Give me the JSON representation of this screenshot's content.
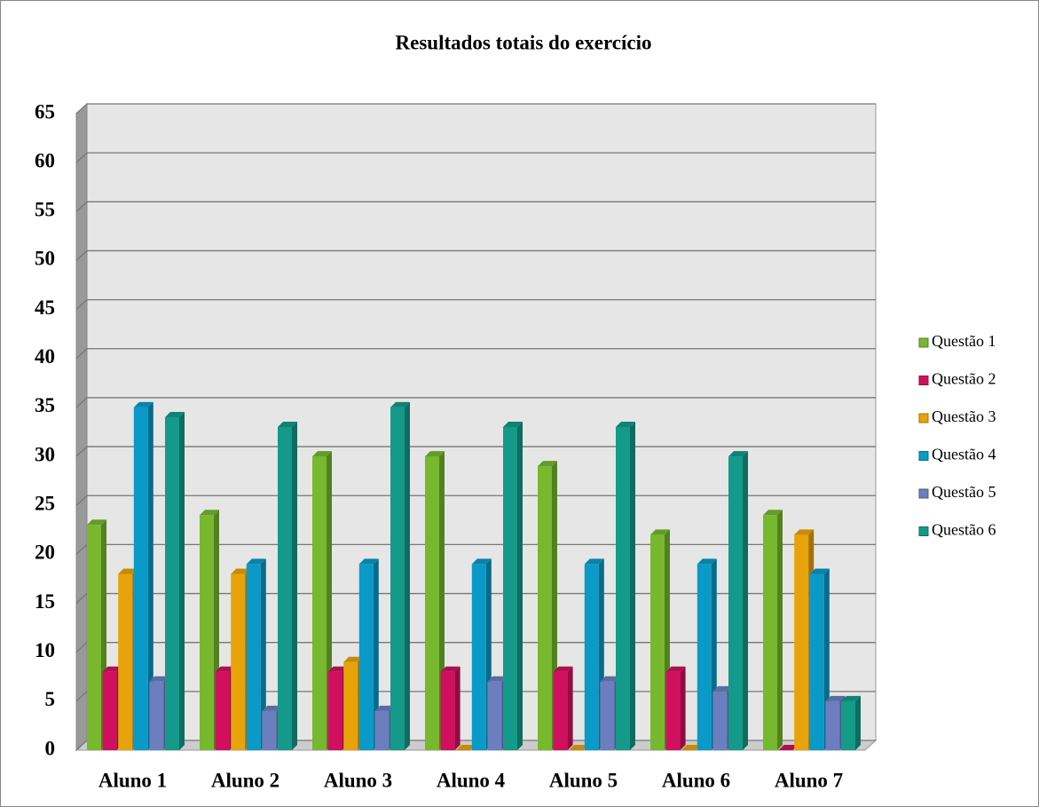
{
  "chart_data": {
    "type": "bar3d",
    "title": "Resultados totais do exercício",
    "categories": [
      "Aluno 1",
      "Aluno 2",
      "Aluno 3",
      "Aluno 4",
      "Aluno 5",
      "Aluno 6",
      "Aluno 7"
    ],
    "series": [
      {
        "name": "Questão 1",
        "color": "#77b82f",
        "values": [
          23,
          24,
          30,
          30,
          29,
          22,
          24
        ]
      },
      {
        "name": "Questão 2",
        "color": "#d0105e",
        "values": [
          8,
          8,
          8,
          8,
          8,
          8,
          0
        ]
      },
      {
        "name": "Questão 3",
        "color": "#e8a30a",
        "values": [
          18,
          18,
          9,
          0,
          0,
          0,
          22
        ]
      },
      {
        "name": "Questão 4",
        "color": "#0a9ac8",
        "values": [
          35,
          19,
          19,
          19,
          19,
          19,
          18
        ]
      },
      {
        "name": "Questão 5",
        "color": "#6b7fbf",
        "values": [
          7,
          4,
          4,
          7,
          7,
          6,
          5
        ]
      },
      {
        "name": "Questão 6",
        "color": "#149a8a",
        "values": [
          34,
          33,
          35,
          33,
          33,
          30,
          5
        ]
      }
    ],
    "ylim": [
      0,
      65
    ],
    "yticks": [
      0,
      5,
      10,
      15,
      20,
      25,
      30,
      35,
      40,
      45,
      50,
      55,
      60,
      65
    ],
    "grid": true,
    "legend": "right"
  }
}
